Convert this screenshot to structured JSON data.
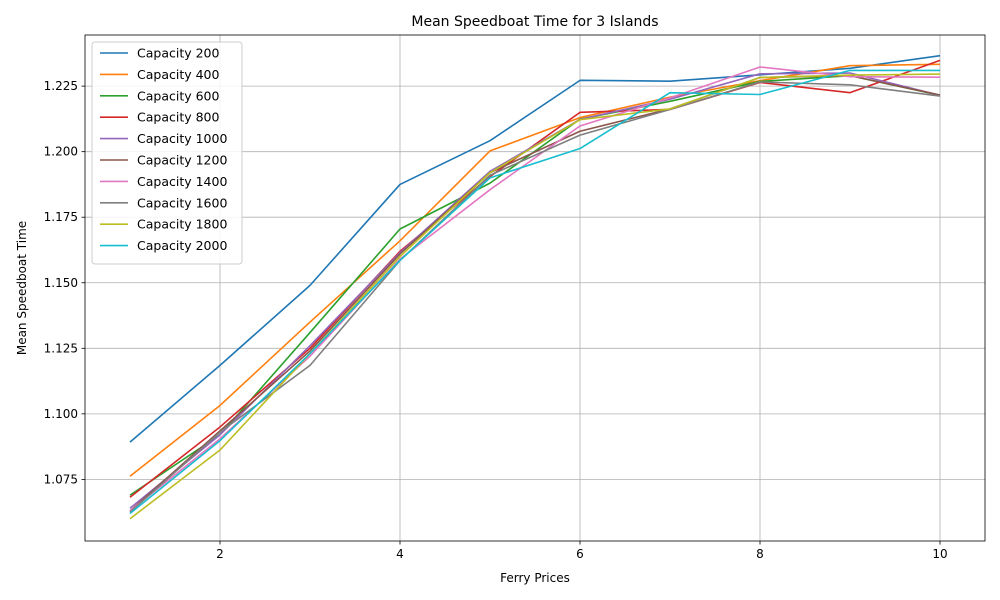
{
  "chart_data": {
    "type": "line",
    "title": "Mean Speedboat Time for 3 Islands",
    "xlabel": "Ferry Prices",
    "ylabel": "Mean Speedboat Time",
    "x": [
      1,
      2,
      3,
      4,
      5,
      6,
      7,
      8,
      9,
      10
    ],
    "xlim": [
      0.5,
      10.5
    ],
    "ylim": [
      1.0515,
      1.2445
    ],
    "xticks": [
      2,
      4,
      6,
      8,
      10
    ],
    "xtick_labels": [
      "2",
      "4",
      "6",
      "8",
      "10"
    ],
    "yticks": [
      1.075,
      1.1,
      1.125,
      1.15,
      1.175,
      1.2,
      1.225
    ],
    "ytick_labels": [
      "1.075",
      "1.100",
      "1.125",
      "1.150",
      "1.175",
      "1.200",
      "1.225"
    ],
    "grid": true,
    "legend_position": "upper-left",
    "series": [
      {
        "name": "Capacity 200",
        "color": "#1f77b4",
        "values": [
          1.0892,
          1.1185,
          1.149,
          1.1875,
          1.2042,
          1.2272,
          1.2269,
          1.2293,
          1.2318,
          1.2366
        ]
      },
      {
        "name": "Capacity 400",
        "color": "#ff7f0e",
        "values": [
          1.0762,
          1.1032,
          1.135,
          1.166,
          1.2003,
          1.213,
          1.2208,
          1.2271,
          1.2328,
          1.2333
        ]
      },
      {
        "name": "Capacity 600",
        "color": "#2ca02c",
        "values": [
          1.069,
          1.092,
          1.131,
          1.1705,
          1.188,
          1.2124,
          1.2192,
          1.2268,
          1.229,
          1.2215
        ]
      },
      {
        "name": "Capacity 800",
        "color": "#d62728",
        "values": [
          1.0682,
          1.095,
          1.125,
          1.162,
          1.1905,
          1.215,
          1.2161,
          1.2264,
          1.2225,
          1.2348
        ]
      },
      {
        "name": "Capacity 1000",
        "color": "#9467bd",
        "values": [
          1.064,
          1.092,
          1.126,
          1.1615,
          1.1925,
          1.2123,
          1.22,
          1.2297,
          1.23,
          1.2215
        ]
      },
      {
        "name": "Capacity 1200",
        "color": "#8c564b",
        "values": [
          1.063,
          1.0935,
          1.124,
          1.161,
          1.192,
          1.2078,
          1.2163,
          1.2283,
          1.229,
          1.2216
        ]
      },
      {
        "name": "Capacity 1400",
        "color": "#e377c2",
        "values": [
          1.063,
          1.0905,
          1.122,
          1.159,
          1.1855,
          1.2098,
          1.2205,
          1.2323,
          1.2286,
          1.2284
        ]
      },
      {
        "name": "Capacity 1600",
        "color": "#7f7f7f",
        "values": [
          1.0625,
          1.093,
          1.1185,
          1.1585,
          1.191,
          1.2063,
          1.2161,
          1.2266,
          1.2255,
          1.2212
        ]
      },
      {
        "name": "Capacity 1800",
        "color": "#bcbd22",
        "values": [
          1.06,
          1.0862,
          1.123,
          1.16,
          1.192,
          1.2122,
          1.2163,
          1.2283,
          1.2292,
          1.2296
        ]
      },
      {
        "name": "Capacity 2000",
        "color": "#17becf",
        "values": [
          1.062,
          1.0898,
          1.123,
          1.1585,
          1.19,
          1.2012,
          1.2225,
          1.2218,
          1.231,
          1.231
        ]
      }
    ]
  }
}
